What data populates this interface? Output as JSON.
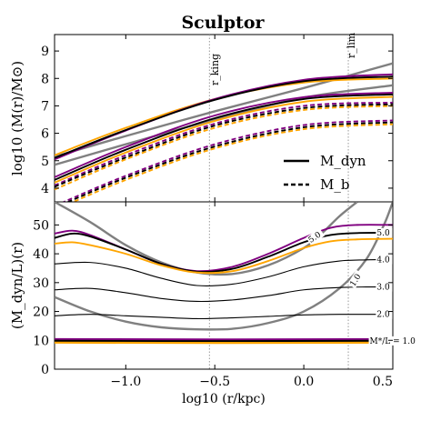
{
  "chart_data": [
    {
      "type": "line",
      "title": "Sculptor",
      "ylabel": "log10 (M(r)/M⊙)",
      "xlim": [
        -1.4,
        0.5
      ],
      "ylim": [
        3.5,
        9.6
      ],
      "yticks": [
        4,
        5,
        6,
        7,
        8,
        9
      ],
      "vlines": [
        {
          "x": -0.53,
          "label": "r_king"
        },
        {
          "x": 0.25,
          "label": "r_lim"
        }
      ],
      "legend": {
        "placement": "lower-right",
        "entries": [
          {
            "label": "M_dyn",
            "style": "solid"
          },
          {
            "label": "M_b",
            "style": "dashed"
          }
        ]
      },
      "series": [
        {
          "color": "#808080",
          "style": "solid",
          "x": [
            -1.4,
            -1.0,
            -0.5,
            0.0,
            0.5
          ],
          "y": [
            5.15,
            5.9,
            6.8,
            7.65,
            8.55
          ]
        },
        {
          "color": "#808080",
          "style": "solid",
          "x": [
            -1.4,
            -1.0,
            -0.5,
            0.0,
            0.5
          ],
          "y": [
            4.85,
            5.6,
            6.5,
            7.3,
            7.75
          ]
        },
        {
          "color": "#ffa500",
          "style": "solid",
          "x": [
            -1.4,
            -1.0,
            -0.5,
            0.0,
            0.5
          ],
          "y": [
            5.2,
            6.2,
            7.25,
            7.85,
            8.0
          ]
        },
        {
          "color": "#800080",
          "style": "solid",
          "x": [
            -1.4,
            -1.0,
            -0.5,
            0.0,
            0.5
          ],
          "y": [
            5.05,
            6.1,
            7.25,
            7.95,
            8.15
          ]
        },
        {
          "color": "#000000",
          "style": "solid",
          "x": [
            -1.4,
            -1.0,
            -0.5,
            0.0,
            0.5
          ],
          "y": [
            5.1,
            6.12,
            7.22,
            7.9,
            8.07
          ]
        },
        {
          "color": "#000000",
          "style": "solid",
          "x": [
            -1.4,
            -1.0,
            -0.5,
            0.0,
            0.5
          ],
          "y": [
            4.3,
            5.4,
            6.55,
            7.25,
            7.42
          ]
        },
        {
          "color": "#800080",
          "style": "solid",
          "x": [
            -1.4,
            -1.0,
            -0.5,
            0.0,
            0.5
          ],
          "y": [
            4.4,
            5.5,
            6.65,
            7.32,
            7.48
          ]
        },
        {
          "color": "#ffa500",
          "style": "solid",
          "x": [
            -1.4,
            -1.0,
            -0.5,
            0.0,
            0.5
          ],
          "y": [
            4.2,
            5.3,
            6.45,
            7.15,
            7.33
          ]
        },
        {
          "color": "#800080",
          "style": "dashed",
          "x": [
            -1.4,
            -1.0,
            -0.5,
            0.0,
            0.5
          ],
          "y": [
            4.1,
            5.2,
            6.35,
            7.0,
            7.12
          ]
        },
        {
          "color": "#ffa500",
          "style": "dashed",
          "x": [
            -1.4,
            -1.0,
            -0.5,
            0.0,
            0.5
          ],
          "y": [
            3.95,
            5.05,
            6.2,
            6.85,
            7.0
          ]
        },
        {
          "color": "#000000",
          "style": "dashed",
          "x": [
            -1.4,
            -1.0,
            -0.5,
            0.0,
            0.5
          ],
          "y": [
            4.05,
            5.12,
            6.28,
            6.92,
            7.06
          ]
        },
        {
          "color": "#800080",
          "style": "dashed",
          "x": [
            -1.4,
            -1.0,
            -0.5,
            0.0,
            0.5
          ],
          "y": [
            3.35,
            4.45,
            5.6,
            6.3,
            6.47
          ]
        },
        {
          "color": "#ffa500",
          "style": "dashed",
          "x": [
            -1.4,
            -1.0,
            -0.5,
            0.0,
            0.5
          ],
          "y": [
            3.2,
            4.3,
            5.45,
            6.15,
            6.33
          ]
        },
        {
          "color": "#000000",
          "style": "dashed",
          "x": [
            -1.4,
            -1.0,
            -0.5,
            0.0,
            0.5
          ],
          "y": [
            3.28,
            4.38,
            5.52,
            6.22,
            6.4
          ]
        }
      ]
    },
    {
      "type": "line",
      "xlabel": "log10 (r/kpc)",
      "ylabel": "(M_dyn/L)(r)",
      "xlim": [
        -1.4,
        0.5
      ],
      "ylim": [
        0,
        58
      ],
      "xticks": [
        -1.0,
        -0.5,
        0.0,
        0.5
      ],
      "xticklabels": [
        "−1.0",
        "−0.5",
        "0.0",
        "0.5"
      ],
      "yticks": [
        0,
        10,
        20,
        30,
        40,
        50
      ],
      "vlines": [
        {
          "x": -0.53
        },
        {
          "x": 0.25
        }
      ],
      "series": [
        {
          "color": "#808080",
          "style": "solid",
          "label": "5.0",
          "x": [
            -1.4,
            -1.2,
            -1.0,
            -0.8,
            -0.6,
            -0.4,
            -0.2,
            0.0,
            0.1,
            0.2,
            0.3
          ],
          "y": [
            58,
            51,
            43,
            37,
            33.5,
            33,
            36,
            42,
            47,
            53,
            58
          ]
        },
        {
          "color": "#808080",
          "style": "solid",
          "label": "1.0",
          "x": [
            -1.4,
            -1.2,
            -1.0,
            -0.8,
            -0.6,
            -0.4,
            -0.2,
            0.0,
            0.2,
            0.35,
            0.45,
            0.5
          ],
          "y": [
            25,
            20,
            16.5,
            14.5,
            13.8,
            14,
            16,
            20,
            28,
            38,
            50,
            58
          ]
        },
        {
          "color": "#800080",
          "style": "solid",
          "x": [
            -1.4,
            -1.3,
            -1.2,
            -1.0,
            -0.8,
            -0.6,
            -0.4,
            -0.2,
            0.0,
            0.15,
            0.3,
            0.5
          ],
          "y": [
            47,
            48,
            46.5,
            41.5,
            36.5,
            34,
            35.5,
            40,
            45.5,
            49,
            50,
            50
          ]
        },
        {
          "color": "#000000",
          "style": "solid",
          "label": "5.0",
          "x": [
            -1.4,
            -1.3,
            -1.2,
            -1.0,
            -0.8,
            -0.6,
            -0.4,
            -0.2,
            0.0,
            0.15,
            0.3,
            0.5
          ],
          "y": [
            45.5,
            47,
            46,
            41.5,
            36.5,
            33.8,
            34.8,
            39,
            44,
            46.5,
            47.2,
            47.3
          ]
        },
        {
          "color": "#ffa500",
          "style": "solid",
          "x": [
            -1.4,
            -1.3,
            -1.2,
            -1.0,
            -0.8,
            -0.6,
            -0.4,
            -0.2,
            0.0,
            0.15,
            0.3,
            0.5
          ],
          "y": [
            43.5,
            44,
            43,
            40,
            36,
            33.5,
            34,
            37.5,
            42,
            44.3,
            45,
            45.2
          ]
        },
        {
          "color": "#000000",
          "style": "solid",
          "label": "4.0",
          "x": [
            -1.4,
            -1.2,
            -1.0,
            -0.8,
            -0.6,
            -0.4,
            -0.2,
            0.0,
            0.2,
            0.35,
            0.5
          ],
          "y": [
            36.5,
            37,
            35,
            31.5,
            29,
            29.5,
            32,
            35.5,
            37.5,
            37.9,
            38
          ]
        },
        {
          "color": "#000000",
          "style": "solid",
          "label": "3.0",
          "x": [
            -1.4,
            -1.2,
            -1.0,
            -0.8,
            -0.6,
            -0.4,
            -0.2,
            0.0,
            0.2,
            0.35,
            0.5
          ],
          "y": [
            27.5,
            28,
            26.5,
            24.5,
            23.5,
            24,
            25.5,
            27.5,
            28.3,
            28.5,
            28.5
          ]
        },
        {
          "color": "#000000",
          "style": "solid",
          "label": "2.0",
          "x": [
            -1.4,
            -1.2,
            -1.0,
            -0.8,
            -0.6,
            -0.4,
            -0.2,
            0.0,
            0.2,
            0.35,
            0.5
          ],
          "y": [
            18.5,
            19,
            18.5,
            18,
            17.5,
            17.8,
            18.3,
            18.8,
            19,
            19,
            19
          ]
        },
        {
          "color": "#800080",
          "style": "solid",
          "x": [
            -1.4,
            -0.5,
            0.5
          ],
          "y": [
            10.4,
            10.3,
            10.4
          ]
        },
        {
          "color": "#000000",
          "style": "solid",
          "label": "M*/L = 1.0",
          "x": [
            -1.4,
            -0.5,
            0.5
          ],
          "y": [
            9.8,
            9.7,
            9.8
          ]
        },
        {
          "color": "#ffa500",
          "style": "solid",
          "x": [
            -1.4,
            -0.5,
            0.5
          ],
          "y": [
            9.2,
            9.1,
            9.2
          ]
        }
      ],
      "curve_labels": [
        {
          "text": "5.0",
          "x": 0.41,
          "y": 47.3
        },
        {
          "text": "4.0",
          "x": 0.41,
          "y": 38.0
        },
        {
          "text": "3.0",
          "x": 0.41,
          "y": 28.5
        },
        {
          "text": "2.0",
          "x": 0.41,
          "y": 19.0
        },
        {
          "text": "M*/L = 1.0",
          "x": 0.37,
          "y": 9.8
        },
        {
          "text": "5.0",
          "x": 0.03,
          "y": 44.5,
          "rotate": -34
        },
        {
          "text": "1.0",
          "x": 0.27,
          "y": 29,
          "rotate": -58
        }
      ]
    }
  ]
}
